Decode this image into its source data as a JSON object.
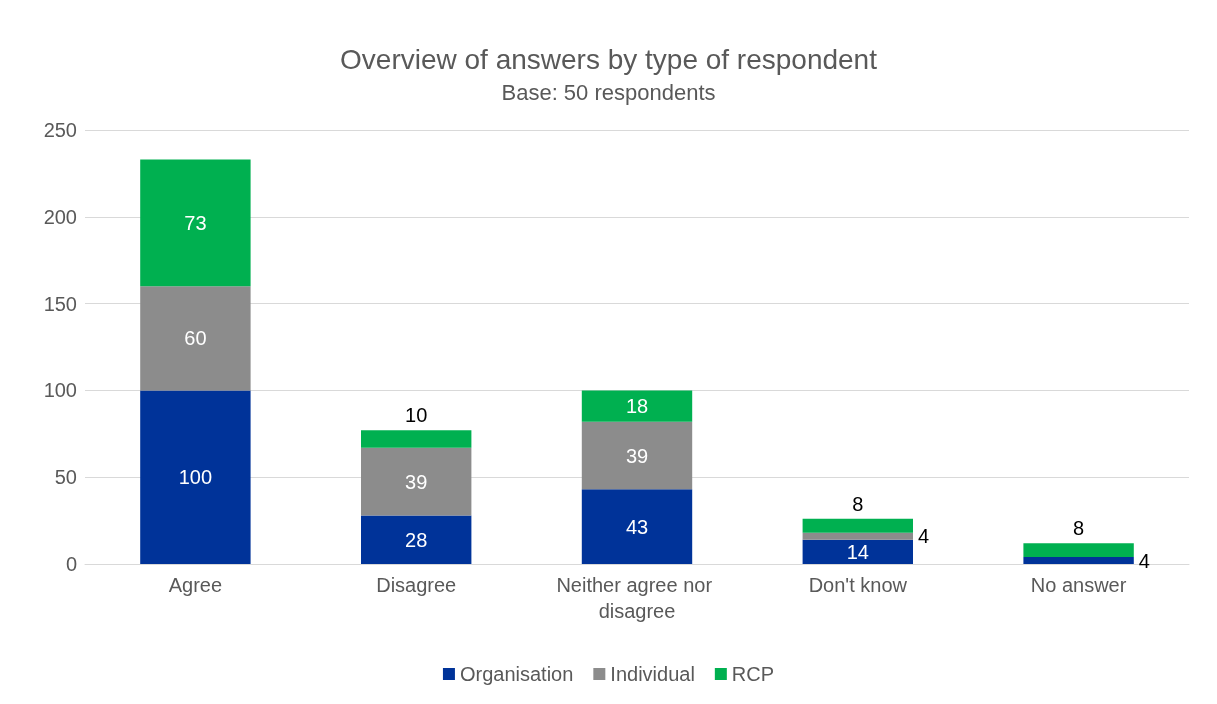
{
  "chart_data": {
    "type": "bar",
    "title": "Overview of answers by type of respondent",
    "subtitle": "Base: 50 respondents",
    "categories": [
      "Agree",
      "Disagree",
      "Neither agree nor disagree",
      "Don't know",
      "No answer"
    ],
    "stacked": true,
    "ylim": [
      0,
      250
    ],
    "yticks": [
      0,
      50,
      100,
      150,
      200,
      250
    ],
    "grid": "y",
    "legend": "bottom",
    "series": [
      {
        "name": "Organisation",
        "color": "#003399",
        "values": [
          100,
          28,
          43,
          14,
          4
        ],
        "value_labels": [
          "100",
          "28",
          "43",
          "14",
          "4"
        ]
      },
      {
        "name": "Individual",
        "color": "#8c8c8c",
        "values": [
          60,
          39,
          39,
          4,
          0
        ],
        "value_labels": [
          "60",
          "39",
          "39",
          "4",
          null
        ]
      },
      {
        "name": "RCP",
        "color": "#00b050",
        "values": [
          73,
          10,
          18,
          8,
          8
        ],
        "value_labels": [
          "73",
          "10",
          "18",
          "8",
          "8"
        ]
      }
    ]
  }
}
